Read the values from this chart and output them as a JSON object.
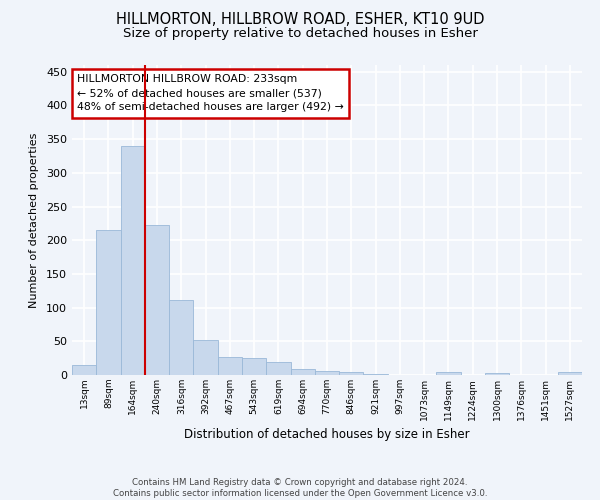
{
  "title": "HILLMORTON, HILLBROW ROAD, ESHER, KT10 9UD",
  "subtitle": "Size of property relative to detached houses in Esher",
  "xlabel": "Distribution of detached houses by size in Esher",
  "ylabel": "Number of detached properties",
  "bar_labels": [
    "13sqm",
    "89sqm",
    "164sqm",
    "240sqm",
    "316sqm",
    "392sqm",
    "467sqm",
    "543sqm",
    "619sqm",
    "694sqm",
    "770sqm",
    "846sqm",
    "921sqm",
    "997sqm",
    "1073sqm",
    "1149sqm",
    "1224sqm",
    "1300sqm",
    "1376sqm",
    "1451sqm",
    "1527sqm"
  ],
  "bar_values": [
    15,
    215,
    340,
    222,
    112,
    52,
    26,
    25,
    19,
    9,
    6,
    4,
    1,
    0,
    0,
    4,
    0,
    3,
    0,
    0,
    4
  ],
  "bar_color": "#c8d8ec",
  "bar_edge_color": "#9ab8d8",
  "vline_color": "#cc0000",
  "annotation_text": "HILLMORTON HILLBROW ROAD: 233sqm\n← 52% of detached houses are smaller (537)\n48% of semi-detached houses are larger (492) →",
  "annotation_box_color": "#ffffff",
  "annotation_box_edge": "#cc0000",
  "bg_color": "#f0f4fa",
  "grid_color": "#ffffff",
  "footer_text": "Contains HM Land Registry data © Crown copyright and database right 2024.\nContains public sector information licensed under the Open Government Licence v3.0.",
  "ylim": [
    0,
    460
  ],
  "yticks": [
    0,
    50,
    100,
    150,
    200,
    250,
    300,
    350,
    400,
    450
  ]
}
